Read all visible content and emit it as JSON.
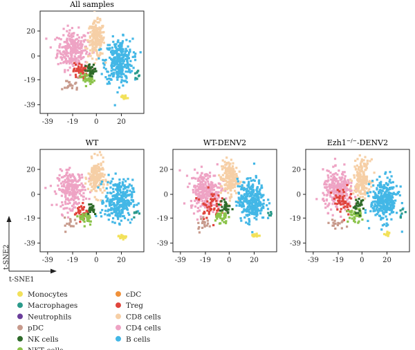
{
  "axis_names": {
    "x": "t-SNE1",
    "y": "t-SNE2"
  },
  "legend_left": [
    {
      "label": "Monocytes",
      "color": "#f2e15a"
    },
    {
      "label": "Macrophages",
      "color": "#2b9a8a"
    },
    {
      "label": "Neutrophils",
      "color": "#6a3d9a"
    },
    {
      "label": "pDC",
      "color": "#c79a8c"
    },
    {
      "label": "NK cells",
      "color": "#2f6b2a"
    },
    {
      "label": "NKT cells",
      "color": "#8bc34a"
    }
  ],
  "legend_right": [
    {
      "label": "cDC",
      "color": "#f0913a"
    },
    {
      "label": "Treg",
      "color": "#e0443c"
    },
    {
      "label": "CD8 cells",
      "color": "#f6cfa6"
    },
    {
      "label": "CD4 cells",
      "color": "#eea3c4"
    },
    {
      "label": "B cells",
      "color": "#43b7e6"
    }
  ],
  "chart_data": [
    {
      "type": "scatter",
      "title": "All samples",
      "xticks": [
        -39,
        -19,
        0,
        20
      ],
      "yticks": [
        20,
        0,
        -19,
        -39
      ],
      "xlim": [
        -45,
        38
      ],
      "ylim": [
        -46,
        36
      ],
      "clusters": [
        {
          "name": "CD4 cells",
          "color": "#eea3c4",
          "cx": -19,
          "cy": 5,
          "sx": 11,
          "sy": 14,
          "n": 260
        },
        {
          "name": "CD8 cells",
          "color": "#f6cfa6",
          "cx": 0,
          "cy": 13,
          "sx": 6,
          "sy": 13,
          "n": 190
        },
        {
          "name": "B cells",
          "color": "#43b7e6",
          "cx": 18,
          "cy": -4,
          "sx": 10,
          "sy": 16,
          "n": 320
        },
        {
          "name": "Treg",
          "color": "#e0443c",
          "cx": -13,
          "cy": -12,
          "sx": 5,
          "sy": 6,
          "n": 45
        },
        {
          "name": "NKT cells",
          "color": "#8bc34a",
          "cx": -7,
          "cy": -18,
          "sx": 5,
          "sy": 5,
          "n": 40
        },
        {
          "name": "NK cells",
          "color": "#2f6b2a",
          "cx": -4,
          "cy": -12,
          "sx": 4,
          "sy": 5,
          "n": 30
        },
        {
          "name": "Monocytes",
          "color": "#f2e15a",
          "cx": 22,
          "cy": -33,
          "sx": 2.5,
          "sy": 1.5,
          "n": 18
        },
        {
          "name": "pDC",
          "color": "#c79a8c",
          "cx": -20,
          "cy": -23,
          "sx": 6,
          "sy": 5,
          "n": 20
        },
        {
          "name": "Macrophages",
          "color": "#2b9a8a",
          "cx": 32,
          "cy": -14,
          "sx": 2,
          "sy": 3,
          "n": 8
        }
      ]
    },
    {
      "type": "scatter",
      "title": "WT",
      "xticks": [
        -39,
        -19,
        0,
        20
      ],
      "yticks": [
        20,
        0,
        -19,
        -39
      ],
      "xlim": [
        -45,
        38
      ],
      "ylim": [
        -46,
        36
      ],
      "clusters": [
        {
          "name": "CD4 cells",
          "color": "#eea3c4",
          "cx": -20,
          "cy": 4,
          "sx": 10,
          "sy": 13,
          "n": 240
        },
        {
          "name": "CD8 cells",
          "color": "#f6cfa6",
          "cx": 0,
          "cy": 13,
          "sx": 6,
          "sy": 13,
          "n": 180
        },
        {
          "name": "B cells",
          "color": "#43b7e6",
          "cx": 18,
          "cy": -5,
          "sx": 10,
          "sy": 15,
          "n": 300
        },
        {
          "name": "Treg",
          "color": "#e0443c",
          "cx": -12,
          "cy": -14,
          "sx": 5,
          "sy": 6,
          "n": 35
        },
        {
          "name": "NKT cells",
          "color": "#8bc34a",
          "cx": -8,
          "cy": -19,
          "sx": 5,
          "sy": 5,
          "n": 30
        },
        {
          "name": "NK cells",
          "color": "#2f6b2a",
          "cx": -4,
          "cy": -11,
          "sx": 4,
          "sy": 5,
          "n": 22
        },
        {
          "name": "Monocytes",
          "color": "#f2e15a",
          "cx": 21,
          "cy": -34,
          "sx": 3,
          "sy": 1.5,
          "n": 20
        },
        {
          "name": "pDC",
          "color": "#c79a8c",
          "cx": -20,
          "cy": -24,
          "sx": 5,
          "sy": 5,
          "n": 16
        },
        {
          "name": "Macrophages",
          "color": "#2b9a8a",
          "cx": 32,
          "cy": -15,
          "sx": 2,
          "sy": 3,
          "n": 6
        }
      ]
    },
    {
      "type": "scatter",
      "title": "WT-DENV2",
      "xticks": [
        -39,
        -19,
        0,
        20
      ],
      "yticks": [
        20,
        0,
        -19,
        -39
      ],
      "xlim": [
        -45,
        38
      ],
      "ylim": [
        -46,
        36
      ],
      "clusters": [
        {
          "name": "CD4 cells",
          "color": "#eea3c4",
          "cx": -19,
          "cy": 3,
          "sx": 11,
          "sy": 14,
          "n": 260
        },
        {
          "name": "CD8 cells",
          "color": "#f6cfa6",
          "cx": 0,
          "cy": 13,
          "sx": 6,
          "sy": 13,
          "n": 180
        },
        {
          "name": "B cells",
          "color": "#43b7e6",
          "cx": 18,
          "cy": -5,
          "sx": 10,
          "sy": 15,
          "n": 310
        },
        {
          "name": "Treg",
          "color": "#e0443c",
          "cx": -15,
          "cy": -8,
          "sx": 7,
          "sy": 10,
          "n": 50
        },
        {
          "name": "NKT cells",
          "color": "#8bc34a",
          "cx": -7,
          "cy": -18,
          "sx": 5,
          "sy": 5,
          "n": 35
        },
        {
          "name": "NK cells",
          "color": "#2f6b2a",
          "cx": -3,
          "cy": -10,
          "sx": 4,
          "sy": 6,
          "n": 28
        },
        {
          "name": "Monocytes",
          "color": "#f2e15a",
          "cx": 21,
          "cy": -33,
          "sx": 2.5,
          "sy": 1.5,
          "n": 14
        },
        {
          "name": "pDC",
          "color": "#c79a8c",
          "cx": -20,
          "cy": -24,
          "sx": 6,
          "sy": 5,
          "n": 18
        },
        {
          "name": "Macrophages",
          "color": "#2b9a8a",
          "cx": 32,
          "cy": -15,
          "sx": 2,
          "sy": 3,
          "n": 6
        }
      ]
    },
    {
      "type": "scatter",
      "title": "Ezh1−/−-DENV2",
      "title_parts": {
        "base": "Ezh1",
        "sup": "−/−",
        "rest": "-DENV2"
      },
      "xticks": [
        -39,
        -19,
        0,
        20
      ],
      "yticks": [
        20,
        0,
        -19,
        -39
      ],
      "xlim": [
        -45,
        38
      ],
      "ylim": [
        -46,
        36
      ],
      "clusters": [
        {
          "name": "CD4 cells",
          "color": "#eea3c4",
          "cx": -19,
          "cy": 3,
          "sx": 11,
          "sy": 14,
          "n": 250
        },
        {
          "name": "CD8 cells",
          "color": "#f6cfa6",
          "cx": 0,
          "cy": 13,
          "sx": 6,
          "sy": 13,
          "n": 180
        },
        {
          "name": "B cells",
          "color": "#43b7e6",
          "cx": 18,
          "cy": -5,
          "sx": 10,
          "sy": 15,
          "n": 310
        },
        {
          "name": "Treg",
          "color": "#e0443c",
          "cx": -16,
          "cy": -6,
          "sx": 7,
          "sy": 11,
          "n": 50
        },
        {
          "name": "NKT cells",
          "color": "#8bc34a",
          "cx": -6,
          "cy": -17,
          "sx": 5,
          "sy": 5,
          "n": 38
        },
        {
          "name": "NK cells",
          "color": "#2f6b2a",
          "cx": -3,
          "cy": -9,
          "sx": 4,
          "sy": 6,
          "n": 26
        },
        {
          "name": "Monocytes",
          "color": "#f2e15a",
          "cx": 21,
          "cy": -32,
          "sx": 2.5,
          "sy": 1.5,
          "n": 12
        },
        {
          "name": "pDC",
          "color": "#c79a8c",
          "cx": -20,
          "cy": -24,
          "sx": 6,
          "sy": 5,
          "n": 16
        },
        {
          "name": "Macrophages",
          "color": "#2b9a8a",
          "cx": 32,
          "cy": -15,
          "sx": 2,
          "sy": 3,
          "n": 6
        }
      ]
    }
  ]
}
